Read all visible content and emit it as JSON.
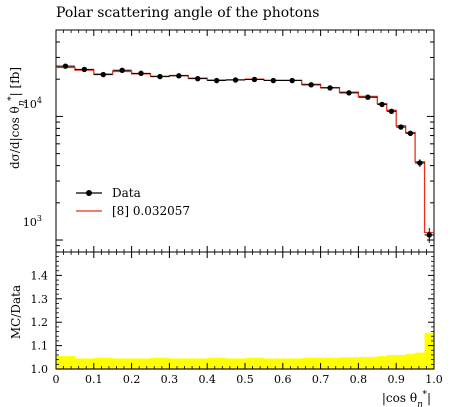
{
  "chart_data": [
    {
      "type": "line",
      "title": "Polar scattering angle of the photons",
      "ylabel": "dσ / d|cos θ*η| [fb]",
      "xlabel": "",
      "yscale": "log",
      "xlim": [
        0,
        1.0
      ],
      "ylim": [
        800,
        50000
      ],
      "xticks": [
        0,
        0.1,
        0.2,
        0.3,
        0.4,
        0.5,
        0.6,
        0.7,
        0.8,
        0.9,
        1.0
      ],
      "ytick_labels": [
        {
          "value": 1000,
          "base": "10",
          "exp": "3"
        },
        {
          "value": 10000,
          "base": "10",
          "exp": "4"
        }
      ],
      "grid": false,
      "legend_position": "lower-left",
      "bin_edges": [
        0,
        0.05,
        0.1,
        0.15,
        0.2,
        0.25,
        0.3,
        0.35,
        0.4,
        0.45,
        0.5,
        0.55,
        0.6,
        0.65,
        0.7,
        0.75,
        0.8,
        0.85,
        0.875,
        0.9,
        0.925,
        0.95,
        0.975,
        1.0
      ],
      "series": [
        {
          "name": "Data",
          "style": "points",
          "color": "#000000",
          "x": [
            0.025,
            0.075,
            0.125,
            0.175,
            0.225,
            0.275,
            0.325,
            0.375,
            0.425,
            0.475,
            0.525,
            0.575,
            0.625,
            0.675,
            0.725,
            0.775,
            0.825,
            0.8625,
            0.8875,
            0.9125,
            0.9375,
            0.9625,
            0.9875
          ],
          "values": [
            25500,
            24000,
            21800,
            23600,
            22300,
            21000,
            21300,
            20200,
            19500,
            19700,
            19900,
            19500,
            19500,
            18000,
            17000,
            15500,
            14300,
            12500,
            11000,
            8200,
            7300,
            4200,
            1100
          ],
          "errors": [
            700,
            700,
            650,
            700,
            650,
            600,
            600,
            600,
            600,
            600,
            600,
            600,
            600,
            550,
            500,
            450,
            450,
            400,
            400,
            350,
            350,
            300,
            150
          ]
        },
        {
          "name": "[8] 0.032057",
          "style": "histogram",
          "color": "#e8311a",
          "values": [
            24900,
            23700,
            22000,
            23100,
            22100,
            21100,
            21400,
            20400,
            19700,
            19800,
            20000,
            19600,
            19600,
            18200,
            17100,
            15700,
            14500,
            12700,
            11200,
            8400,
            7400,
            4300,
            1150
          ]
        }
      ]
    },
    {
      "type": "area",
      "ylabel": "MC/Data",
      "xlabel": "|cos θ*η|",
      "xlim": [
        0,
        1.0
      ],
      "ylim": [
        1.0,
        1.5
      ],
      "xticks": [
        0,
        0.1,
        0.2,
        0.3,
        0.4,
        0.5,
        0.6,
        0.7,
        0.8,
        0.9,
        1.0
      ],
      "xtick_labels": [
        "0",
        "0.1",
        "0.2",
        "0.3",
        "0.4",
        "0.5",
        "0.6",
        "0.7",
        "0.8",
        "0.9",
        "1.0"
      ],
      "yticks": [
        1.0,
        1.1,
        1.2,
        1.3,
        1.4
      ],
      "ytick_labels": [
        "1.0",
        "1.1",
        "1.2",
        "1.3",
        "1.4"
      ],
      "band_color": "#ffff00",
      "bin_edges": [
        0,
        0.05,
        0.1,
        0.15,
        0.2,
        0.25,
        0.3,
        0.35,
        0.4,
        0.45,
        0.5,
        0.55,
        0.6,
        0.65,
        0.7,
        0.75,
        0.8,
        0.85,
        0.875,
        0.9,
        0.925,
        0.95,
        0.975,
        1.0
      ],
      "band_upper": [
        1.055,
        1.045,
        1.048,
        1.045,
        1.045,
        1.048,
        1.045,
        1.045,
        1.048,
        1.045,
        1.048,
        1.045,
        1.045,
        1.048,
        1.048,
        1.05,
        1.052,
        1.055,
        1.06,
        1.06,
        1.065,
        1.07,
        1.155
      ],
      "band_lower": [
        1.0,
        1.0,
        1.0,
        1.0,
        1.0,
        1.0,
        1.0,
        1.0,
        1.0,
        1.0,
        1.0,
        1.0,
        1.0,
        1.0,
        1.0,
        1.0,
        1.0,
        1.0,
        1.0,
        1.0,
        1.0,
        1.0,
        1.0
      ]
    }
  ]
}
